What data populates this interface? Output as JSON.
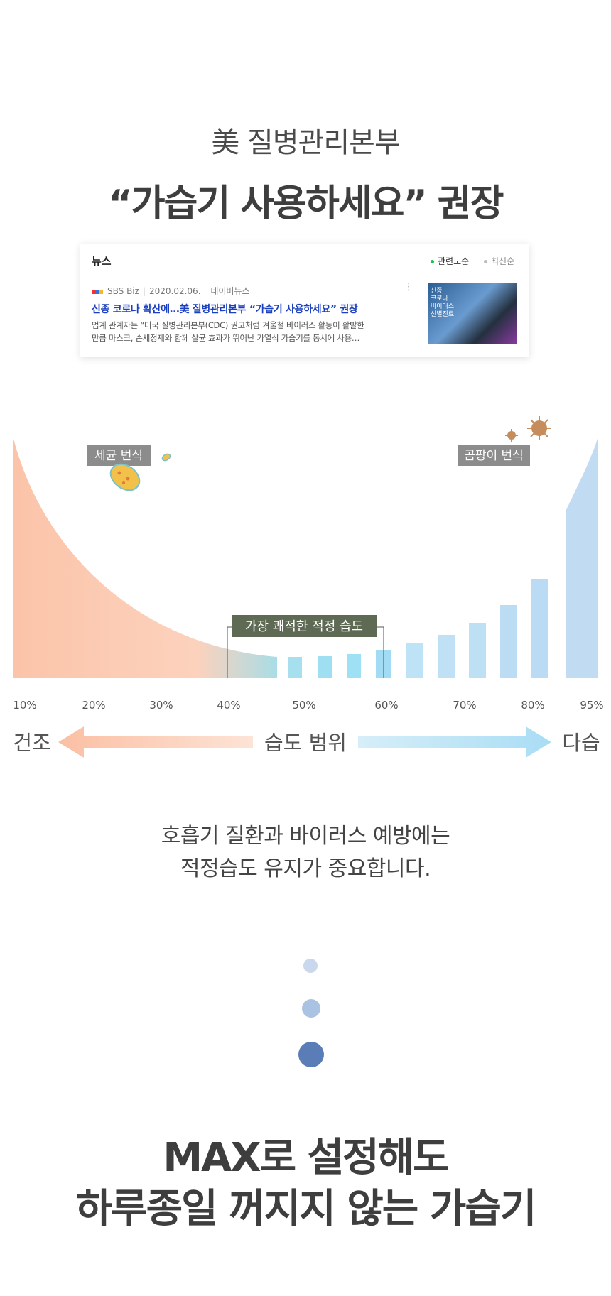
{
  "intro": {
    "subtitle": "美 질병관리본부",
    "headline": "“가습기 사용하세요” 권장"
  },
  "news": {
    "section_label": "뉴스",
    "sort_options": [
      {
        "label": "관련도순",
        "active": true
      },
      {
        "label": "최신순",
        "active": false
      }
    ],
    "item": {
      "source": "SBS Biz",
      "date": "2020.02.06.",
      "portal": "네이버뉴스",
      "title": "신종 코로나 확산에…美 질병관리본부 “가습기 사용하세요” 권장",
      "snippet_line1": "업계 관계자는 “미국 질병관리본부(CDC) 권고처럼 겨울철 바이러스 활동이 활발한",
      "snippet_line2": "만큼 마스크, 손세정제와 함께 살균 효과가 뛰어난 가열식 가습기를 동시에 사용…",
      "thumbnail_text": "신종\n코로나\n바이러스\n선별진료"
    }
  },
  "humidity_chart": {
    "bacteria_label": "세균 번식",
    "mold_label": "곰팡이 번식",
    "optimal_label": "가장 쾌적한 적정 습도",
    "ticks": [
      "10%",
      "20%",
      "30%",
      "40%",
      "50%",
      "60%",
      "70%",
      "80%",
      "95%"
    ],
    "dry_label": "건조",
    "range_label": "습도 범위",
    "humid_label": "다습",
    "colors": {
      "dry": "#fbc6ac",
      "humid": "#bcdcf4",
      "optimal": "#9ee0f2",
      "label_bg": "#8c8c8c",
      "optimal_bg": "#5f6a55"
    },
    "icons": [
      "bacteria-icon",
      "virus-icon"
    ]
  },
  "caption": {
    "line1": "호흡기 질환과 바이러스 예방에는",
    "line2": "적정습도 유지가 중요합니다."
  },
  "closing": {
    "line1": "MAX로 설정해도",
    "line2": "하루종일 꺼지지 않는 가습기"
  }
}
